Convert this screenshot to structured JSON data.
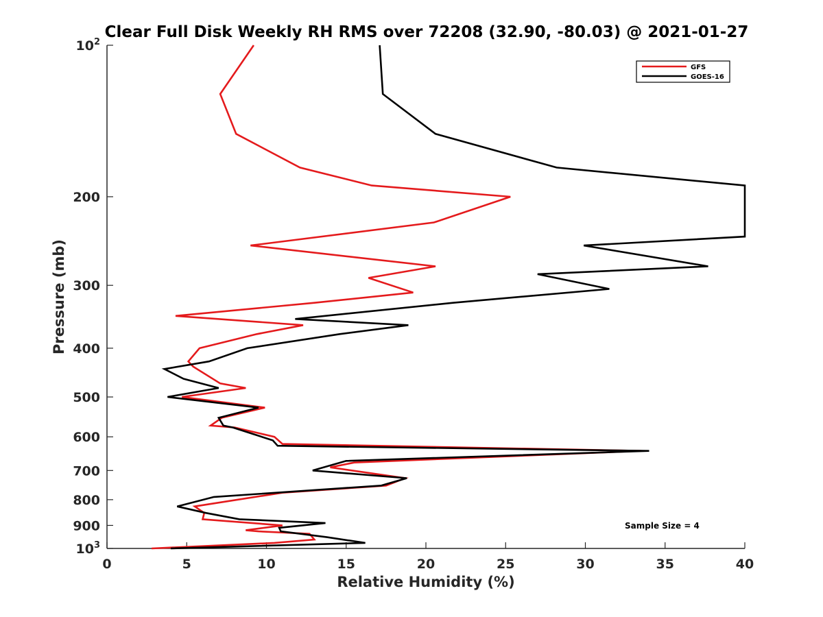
{
  "chart_data": {
    "type": "line",
    "title": "Clear Full Disk Weekly RH RMS over 72208 (32.90, -80.03) @ 2021-01-27",
    "xlabel": "Relative Humidity (%)",
    "ylabel": "Pressure (mb)",
    "xlim": [
      0,
      40
    ],
    "ylim": [
      100,
      1000
    ],
    "y_scale": "log",
    "y_reversed": true,
    "grid": false,
    "x_ticks": [
      0,
      5,
      10,
      15,
      20,
      25,
      30,
      35,
      40
    ],
    "x_tick_labels": [
      "0",
      "5",
      "10",
      "15",
      "20",
      "25",
      "30",
      "35",
      "40"
    ],
    "y_ticks": [
      100,
      200,
      300,
      400,
      500,
      600,
      700,
      800,
      900,
      1000
    ],
    "y_tick_labels": [
      {
        "base": "10",
        "sup": "2"
      },
      {
        "base": "200",
        "sup": ""
      },
      {
        "base": "300",
        "sup": ""
      },
      {
        "base": "400",
        "sup": ""
      },
      {
        "base": "500",
        "sup": ""
      },
      {
        "base": "600",
        "sup": ""
      },
      {
        "base": "700",
        "sup": ""
      },
      {
        "base": "800",
        "sup": ""
      },
      {
        "base": "900",
        "sup": ""
      },
      {
        "base": "10",
        "sup": "3"
      }
    ],
    "legend_position": "top-right",
    "annotation": "Sample Size = 4",
    "series": [
      {
        "name": "GFS",
        "color": "#e41a1c",
        "points": [
          {
            "x": 9.2,
            "y": 100
          },
          {
            "x": 7.1,
            "y": 125
          },
          {
            "x": 8.1,
            "y": 150
          },
          {
            "x": 12.1,
            "y": 175
          },
          {
            "x": 16.6,
            "y": 190
          },
          {
            "x": 25.3,
            "y": 200
          },
          {
            "x": 20.5,
            "y": 225
          },
          {
            "x": 9.0,
            "y": 250
          },
          {
            "x": 20.6,
            "y": 275
          },
          {
            "x": 16.4,
            "y": 290
          },
          {
            "x": 19.2,
            "y": 310
          },
          {
            "x": 13.0,
            "y": 325
          },
          {
            "x": 4.3,
            "y": 345
          },
          {
            "x": 12.3,
            "y": 360
          },
          {
            "x": 9.4,
            "y": 375
          },
          {
            "x": 5.8,
            "y": 400
          },
          {
            "x": 5.1,
            "y": 425
          },
          {
            "x": 5.4,
            "y": 435
          },
          {
            "x": 7.1,
            "y": 470
          },
          {
            "x": 8.7,
            "y": 480
          },
          {
            "x": 4.7,
            "y": 500
          },
          {
            "x": 9.9,
            "y": 525
          },
          {
            "x": 7.2,
            "y": 550
          },
          {
            "x": 6.5,
            "y": 570
          },
          {
            "x": 8.0,
            "y": 575
          },
          {
            "x": 10.5,
            "y": 600
          },
          {
            "x": 11.0,
            "y": 620
          },
          {
            "x": 33.5,
            "y": 640
          },
          {
            "x": 15.5,
            "y": 675
          },
          {
            "x": 14.0,
            "y": 690
          },
          {
            "x": 18.7,
            "y": 725
          },
          {
            "x": 17.5,
            "y": 750
          },
          {
            "x": 11.0,
            "y": 775
          },
          {
            "x": 5.5,
            "y": 825
          },
          {
            "x": 6.1,
            "y": 850
          },
          {
            "x": 6.0,
            "y": 875
          },
          {
            "x": 11.0,
            "y": 900
          },
          {
            "x": 8.7,
            "y": 920
          },
          {
            "x": 9.5,
            "y": 925
          },
          {
            "x": 12.7,
            "y": 935
          },
          {
            "x": 13.0,
            "y": 960
          },
          {
            "x": 10.5,
            "y": 975
          },
          {
            "x": 2.8,
            "y": 1000
          }
        ]
      },
      {
        "name": "GOES-16",
        "color": "#000000",
        "points": [
          {
            "x": 17.1,
            "y": 100
          },
          {
            "x": 17.3,
            "y": 125
          },
          {
            "x": 20.6,
            "y": 150
          },
          {
            "x": 28.2,
            "y": 175
          },
          {
            "x": 40.0,
            "y": 190
          },
          {
            "x": 40.5,
            "y": 200
          },
          {
            "x": 40.0,
            "y": 240
          },
          {
            "x": 29.9,
            "y": 250
          },
          {
            "x": 37.7,
            "y": 275
          },
          {
            "x": 27.0,
            "y": 285
          },
          {
            "x": 31.5,
            "y": 305
          },
          {
            "x": 21.7,
            "y": 325
          },
          {
            "x": 11.8,
            "y": 350
          },
          {
            "x": 18.9,
            "y": 360
          },
          {
            "x": 14.6,
            "y": 375
          },
          {
            "x": 8.8,
            "y": 400
          },
          {
            "x": 6.4,
            "y": 425
          },
          {
            "x": 3.6,
            "y": 440
          },
          {
            "x": 4.8,
            "y": 460
          },
          {
            "x": 7.0,
            "y": 480
          },
          {
            "x": 3.8,
            "y": 500
          },
          {
            "x": 9.5,
            "y": 525
          },
          {
            "x": 7.0,
            "y": 550
          },
          {
            "x": 7.3,
            "y": 570
          },
          {
            "x": 7.9,
            "y": 575
          },
          {
            "x": 10.4,
            "y": 610
          },
          {
            "x": 10.7,
            "y": 625
          },
          {
            "x": 34.0,
            "y": 640
          },
          {
            "x": 15.0,
            "y": 670
          },
          {
            "x": 12.9,
            "y": 700
          },
          {
            "x": 18.8,
            "y": 725
          },
          {
            "x": 17.2,
            "y": 750
          },
          {
            "x": 6.7,
            "y": 790
          },
          {
            "x": 4.4,
            "y": 825
          },
          {
            "x": 6.2,
            "y": 850
          },
          {
            "x": 8.3,
            "y": 875
          },
          {
            "x": 13.7,
            "y": 890
          },
          {
            "x": 10.8,
            "y": 910
          },
          {
            "x": 10.9,
            "y": 925
          },
          {
            "x": 13.8,
            "y": 950
          },
          {
            "x": 16.2,
            "y": 975
          },
          {
            "x": 4.0,
            "y": 1000
          }
        ]
      }
    ]
  }
}
